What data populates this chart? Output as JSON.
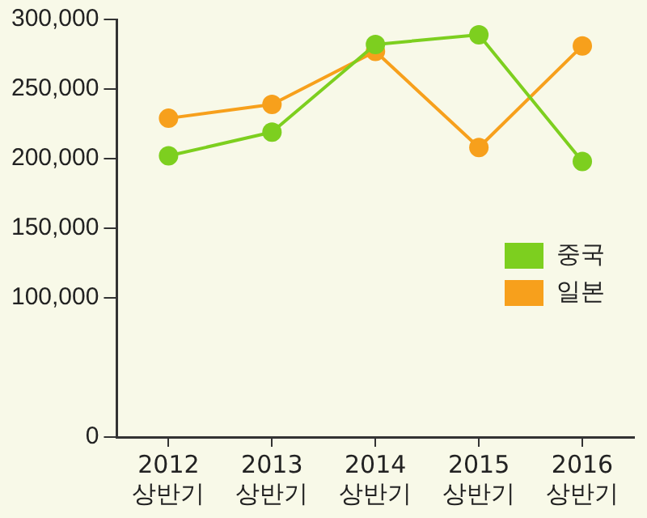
{
  "chart_data": {
    "type": "line",
    "categories": [
      "2012 상반기",
      "2013 상반기",
      "2014 상반기",
      "2015 상반기",
      "2016 상반기"
    ],
    "series": [
      {
        "name": "중국",
        "color": "#7dcf1f",
        "values": [
          202000,
          219000,
          282000,
          289000,
          198000
        ]
      },
      {
        "name": "일본",
        "color": "#f7a01c",
        "values": [
          229000,
          239000,
          277000,
          208000,
          281000
        ]
      }
    ],
    "ylim": [
      0,
      300000
    ],
    "yticks": [
      0,
      {
        "value": 100000,
        "label": "100,000"
      },
      {
        "value": 150000,
        "label": "150,000"
      },
      {
        "value": 200000,
        "label": "200,000"
      },
      {
        "value": 250000,
        "label": "250,000"
      },
      {
        "value": 300000,
        "label": "300,000"
      }
    ],
    "grid": false,
    "legend": "right",
    "marker": "circle",
    "line_style": "solid"
  }
}
